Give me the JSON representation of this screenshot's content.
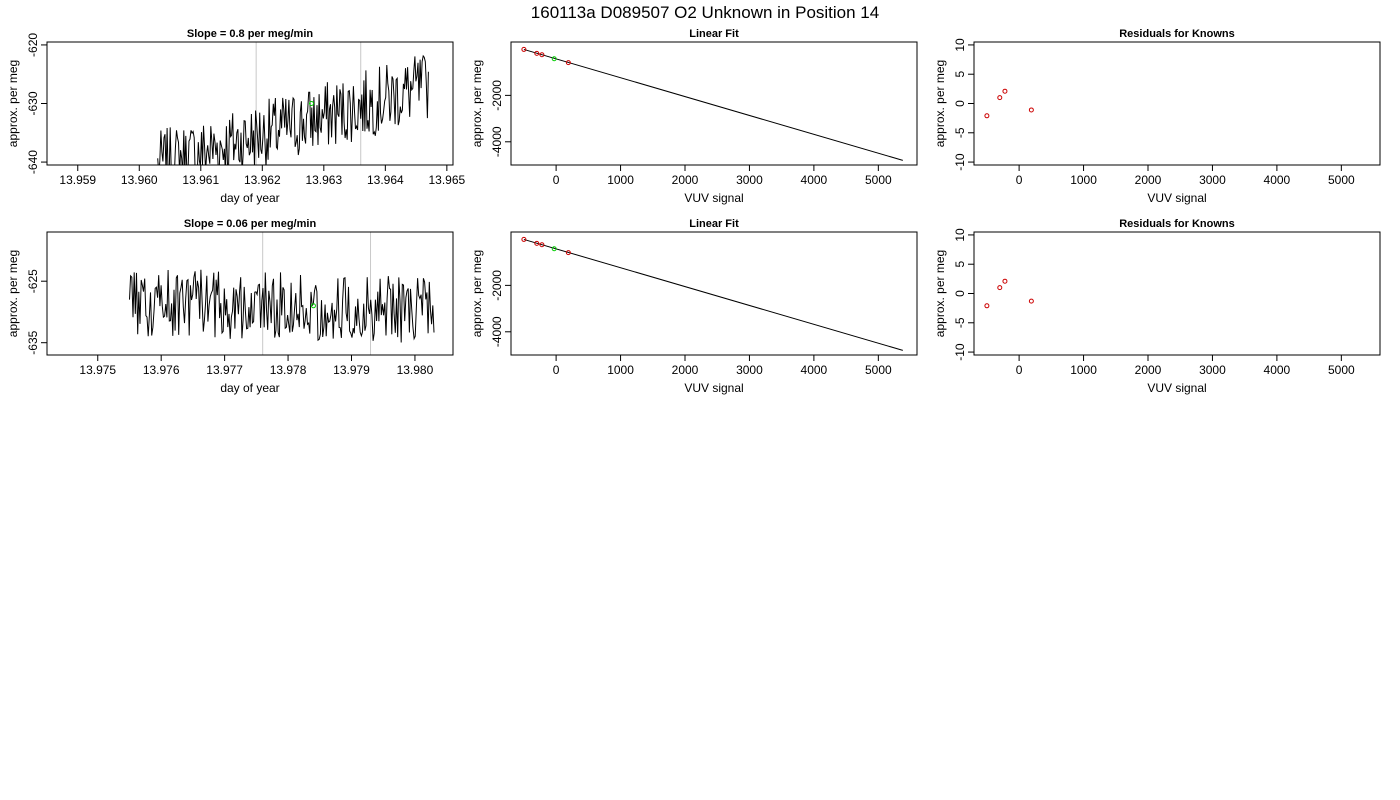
{
  "figure": {
    "title": "160113a     D089507   O2 Unknown in Position  14"
  },
  "colors": {
    "line": "#000000",
    "known_points": "#cc0000",
    "unknown_points": "#00cc00",
    "marker_lines": "#c8c8c8"
  },
  "chart_data": [
    {
      "type": "line",
      "title": "Slope =  0.8  per meg/min",
      "xlabel": "day of year",
      "ylabel": "approx. per meg",
      "xlim": [
        13.9585,
        13.9651
      ],
      "ylim": [
        -640.5,
        -619.5
      ],
      "xticks": [
        "13.959",
        "13.960",
        "13.961",
        "13.962",
        "13.963",
        "13.964",
        "13.965"
      ],
      "yticks": [
        "-620",
        "-630",
        "-640"
      ],
      "series_range": {
        "x": [
          13.9603,
          13.9647
        ],
        "y": [
          -642,
          -619
        ]
      },
      "trend": {
        "start": -640.5,
        "end": -627.0
      },
      "vertical_markers": [
        13.9619,
        13.9636
      ],
      "unknown_point": {
        "x": 13.9628,
        "y": -630
      }
    },
    {
      "type": "scatter",
      "title": "Linear Fit",
      "xlabel": "VUV signal",
      "ylabel": "approx. per meg",
      "xlim": [
        -700,
        5600
      ],
      "ylim": [
        -5000,
        300
      ],
      "xticks": [
        "0",
        "1000",
        "2000",
        "3000",
        "4000",
        "5000"
      ],
      "yticks": [
        "-2000",
        "-4000"
      ],
      "fit_line": {
        "x": [
          -500,
          5380
        ],
        "y": [
          -20,
          -4800
        ]
      },
      "knowns": [
        {
          "x": -500,
          "y": -20
        },
        {
          "x": -300,
          "y": -190
        },
        {
          "x": -220,
          "y": -250
        },
        {
          "x": 190,
          "y": -590
        }
      ],
      "unknowns": [
        {
          "x": -30,
          "y": -420
        }
      ]
    },
    {
      "type": "scatter",
      "title": "Residuals for Knowns",
      "xlabel": "VUV signal",
      "ylabel": "approx. per meg",
      "xlim": [
        -700,
        5600
      ],
      "ylim": [
        -10.5,
        10.5
      ],
      "xticks": [
        "0",
        "1000",
        "2000",
        "3000",
        "4000",
        "5000"
      ],
      "yticks": [
        "10",
        "5",
        "0",
        "-5",
        "-10"
      ],
      "knowns": [
        {
          "x": -500,
          "y": -2.1
        },
        {
          "x": -300,
          "y": 1.0
        },
        {
          "x": -220,
          "y": 2.1
        },
        {
          "x": 190,
          "y": -1.1
        }
      ]
    },
    {
      "type": "line",
      "title": "Slope =  0.06  per meg/min",
      "xlabel": "day of year",
      "ylabel": "approx. per meg",
      "xlim": [
        13.9742,
        13.9806
      ],
      "ylim": [
        -637,
        -617
      ],
      "xticks": [
        "13.975",
        "13.976",
        "13.977",
        "13.978",
        "13.979",
        "13.980"
      ],
      "yticks": [
        "-625",
        "-635"
      ],
      "series_range": {
        "x": [
          13.9755,
          13.9803
        ],
        "y": [
          -638,
          -617
        ]
      },
      "trend": {
        "start": -628.5,
        "end": -629.5
      },
      "vertical_markers": [
        13.9776,
        13.9793
      ],
      "unknown_point": {
        "x": 13.9784,
        "y": -629
      }
    },
    {
      "type": "scatter",
      "title": "Linear Fit",
      "xlabel": "VUV signal",
      "ylabel": "approx. per meg",
      "xlim": [
        -700,
        5600
      ],
      "ylim": [
        -5000,
        300
      ],
      "xticks": [
        "0",
        "1000",
        "2000",
        "3000",
        "4000",
        "5000"
      ],
      "yticks": [
        "-2000",
        "-4000"
      ],
      "fit_line": {
        "x": [
          -500,
          5380
        ],
        "y": [
          -20,
          -4800
        ]
      },
      "knowns": [
        {
          "x": -500,
          "y": -20
        },
        {
          "x": -300,
          "y": -190
        },
        {
          "x": -220,
          "y": -250
        },
        {
          "x": 190,
          "y": -590
        }
      ],
      "unknowns": [
        {
          "x": -30,
          "y": -420
        }
      ]
    },
    {
      "type": "scatter",
      "title": "Residuals for Knowns",
      "xlabel": "VUV signal",
      "ylabel": "approx. per meg",
      "xlim": [
        -700,
        5600
      ],
      "ylim": [
        -10.5,
        10.5
      ],
      "xticks": [
        "0",
        "1000",
        "2000",
        "3000",
        "4000",
        "5000"
      ],
      "yticks": [
        "10",
        "5",
        "0",
        "-5",
        "-10"
      ],
      "knowns": [
        {
          "x": -500,
          "y": -2.1
        },
        {
          "x": -300,
          "y": 1.0
        },
        {
          "x": -220,
          "y": 2.1
        },
        {
          "x": 190,
          "y": -1.3
        }
      ]
    }
  ]
}
